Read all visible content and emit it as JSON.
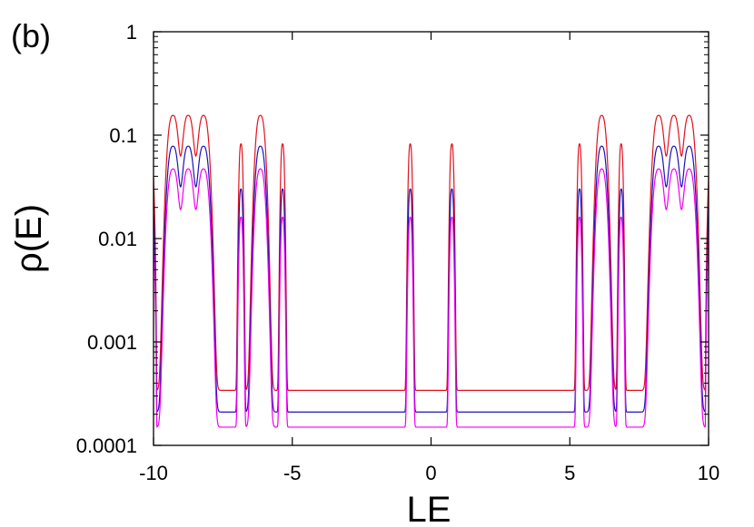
{
  "panel_label": "(b)",
  "chart_data": {
    "type": "line",
    "xlabel": "LE",
    "ylabel": "ρ(E)",
    "xlim": [
      -10,
      10
    ],
    "ylim": [
      0.0001,
      1
    ],
    "yscale": "log",
    "grid": false,
    "legend": "none",
    "x_ticks": [
      -10,
      -5,
      0,
      5,
      10
    ],
    "x_tick_labels": [
      "-10",
      "-5",
      "0",
      "5",
      "10"
    ],
    "y_ticks": [
      1,
      0.1,
      0.01,
      0.001,
      0.0001
    ],
    "y_tick_labels": [
      "1",
      "0.1",
      "0.01",
      "0.001",
      "0.0001"
    ],
    "peak_positions": [
      -9.3,
      -8.75,
      -8.2,
      -6.85,
      -6.15,
      -5.35,
      -0.75,
      0.75,
      5.35,
      6.15,
      6.85,
      8.2,
      8.75,
      9.3
    ],
    "peak_half_widths": [
      0.2,
      0.2,
      0.2,
      0.07,
      0.18,
      0.07,
      0.07,
      0.07,
      0.07,
      0.18,
      0.07,
      0.2,
      0.2,
      0.2
    ],
    "series": [
      {
        "color": "#e3111e",
        "baseline": 0.00034,
        "peak_heights": [
          0.155,
          0.155,
          0.155,
          0.082,
          0.155,
          0.082,
          0.082,
          0.082,
          0.082,
          0.155,
          0.082,
          0.155,
          0.155,
          0.155
        ]
      },
      {
        "color": "#1a13b8",
        "baseline": 0.00021,
        "peak_heights": [
          0.078,
          0.078,
          0.078,
          0.03,
          0.078,
          0.03,
          0.03,
          0.03,
          0.03,
          0.078,
          0.03,
          0.078,
          0.078,
          0.078
        ]
      },
      {
        "color": "#f000f0",
        "baseline": 0.00015,
        "peak_heights": [
          0.047,
          0.047,
          0.047,
          0.016,
          0.047,
          0.016,
          0.016,
          0.016,
          0.016,
          0.047,
          0.016,
          0.047,
          0.047,
          0.047
        ]
      }
    ]
  }
}
